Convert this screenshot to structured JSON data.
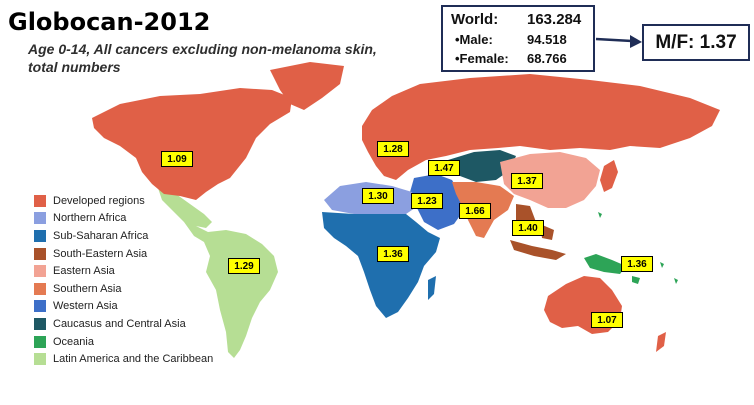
{
  "title": "Globocan-2012",
  "subtitle": "Age 0-14, All cancers excluding non-melanoma skin, total numbers",
  "world_box": {
    "world_label": "World:",
    "world_value": "163.284",
    "male_label": "•Male:",
    "male_value": "94.518",
    "female_label": "•Female:",
    "female_value": "68.766"
  },
  "mf_ratio": "M/F: 1.37",
  "legend": [
    {
      "label": "Developed regions",
      "color": "#e06047"
    },
    {
      "label": "Northern Africa",
      "color": "#8b9fe0"
    },
    {
      "label": "Sub-Saharan Africa",
      "color": "#1f6fae"
    },
    {
      "label": "South-Eastern Asia",
      "color": "#a9522a"
    },
    {
      "label": "Eastern Asia",
      "color": "#f2a394"
    },
    {
      "label": "Southern Asia",
      "color": "#e47a52"
    },
    {
      "label": "Western Asia",
      "color": "#3d6fc8"
    },
    {
      "label": "Caucasus and Central Asia",
      "color": "#1e5864"
    },
    {
      "label": "Oceania",
      "color": "#2da457"
    },
    {
      "label": "Latin America and the Caribbean",
      "color": "#b6de94"
    }
  ],
  "region_ratios": [
    {
      "region": "North America",
      "value": "1.09"
    },
    {
      "region": "Europe",
      "value": "1.28"
    },
    {
      "region": "Caucasus and Central Asia",
      "value": "1.47"
    },
    {
      "region": "Eastern Asia",
      "value": "1.37"
    },
    {
      "region": "Northern Africa",
      "value": "1.30"
    },
    {
      "region": "Western Asia",
      "value": "1.23"
    },
    {
      "region": "Southern Asia",
      "value": "1.66"
    },
    {
      "region": "South-Eastern Asia",
      "value": "1.40"
    },
    {
      "region": "Sub-Saharan Africa",
      "value": "1.36"
    },
    {
      "region": "Oceania",
      "value": "1.36"
    },
    {
      "region": "Latin America and the Caribbean",
      "value": "1.29"
    },
    {
      "region": "Australia",
      "value": "1.07"
    }
  ]
}
